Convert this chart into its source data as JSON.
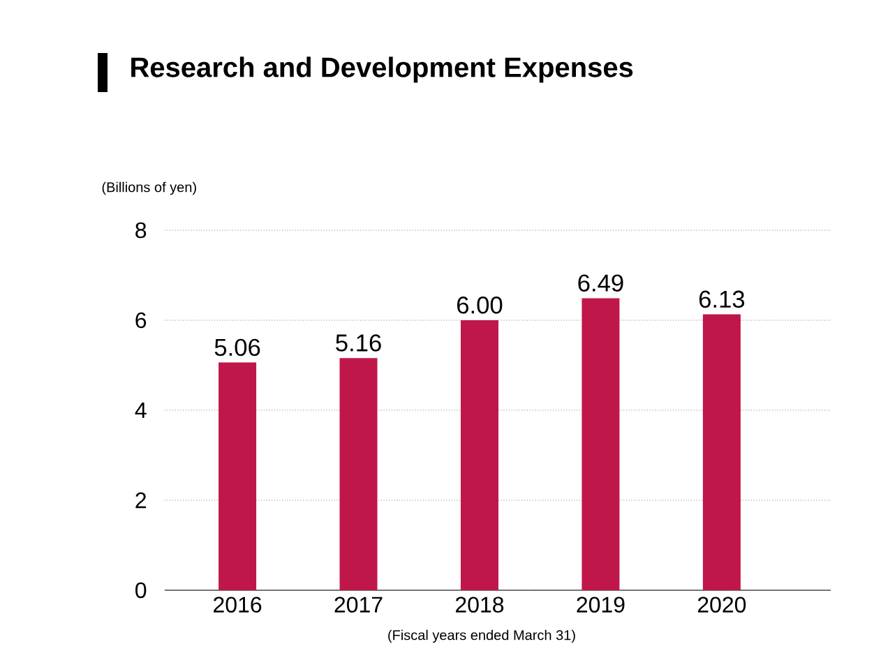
{
  "chart_data": {
    "type": "bar",
    "title": "Research and Development Expenses",
    "ylabel": "(Billions of yen)",
    "xlabel": "(Fiscal years ended March 31)",
    "categories": [
      "2016",
      "2017",
      "2018",
      "2019",
      "2020"
    ],
    "values": [
      5.06,
      5.16,
      6.0,
      6.49,
      6.13
    ],
    "value_labels": [
      "5.06",
      "5.16",
      "6.00",
      "6.49",
      "6.13"
    ],
    "color": "#c0174a",
    "ylim": [
      0,
      8
    ],
    "yticks": [
      0,
      2,
      4,
      6,
      8
    ],
    "grid": "y"
  }
}
